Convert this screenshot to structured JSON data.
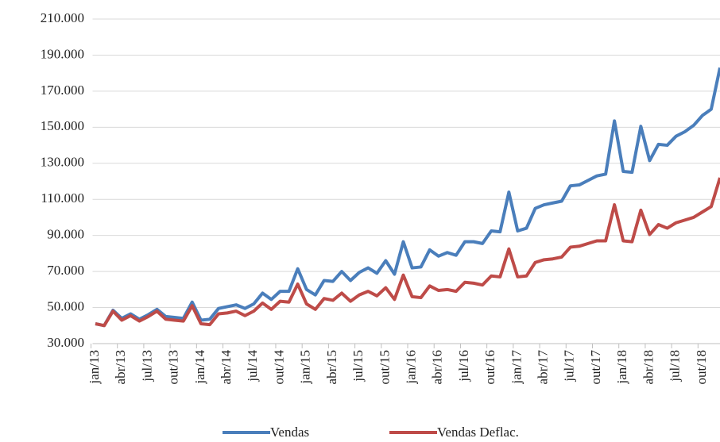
{
  "chart_data": {
    "type": "line",
    "categories": [
      "jan/13",
      null,
      null,
      "abr/13",
      null,
      null,
      "jul/13",
      null,
      null,
      "out/13",
      null,
      null,
      "jan/14",
      null,
      null,
      "abr/14",
      null,
      null,
      "jul/14",
      null,
      null,
      "out/14",
      null,
      null,
      "jan/15",
      null,
      null,
      "abr/15",
      null,
      null,
      "jul/15",
      null,
      null,
      "out/15",
      null,
      null,
      "jan/16",
      null,
      null,
      "abr/16",
      null,
      null,
      "jul/16",
      null,
      null,
      "out/16",
      null,
      null,
      "jan/17",
      null,
      null,
      "abr/17",
      null,
      null,
      "jul/17",
      null,
      null,
      "out/17",
      null,
      null,
      "jan/18",
      null,
      null,
      "abr/18",
      null,
      null,
      "jul/18",
      null,
      null,
      "out/18",
      null,
      null
    ],
    "series": [
      {
        "name": "Vendas",
        "color": "#4a7ebb",
        "values": [
          41000,
          40000,
          48500,
          44000,
          46500,
          43500,
          46000,
          49000,
          45000,
          44500,
          44000,
          53000,
          43000,
          43500,
          49500,
          50500,
          51500,
          49500,
          52000,
          58000,
          54500,
          59000,
          59000,
          71500,
          60000,
          57000,
          65000,
          64500,
          70000,
          65000,
          69500,
          72000,
          69000,
          76000,
          68500,
          86500,
          72000,
          72500,
          82000,
          78500,
          80500,
          79000,
          86500,
          86500,
          85500,
          92500,
          92000,
          114000,
          92500,
          94000,
          105000,
          107000,
          108000,
          109000,
          117500,
          118000,
          120500,
          123000,
          124000,
          153500,
          125500,
          125000,
          150500,
          131500,
          140500,
          140000,
          145000,
          147500,
          151000,
          156500,
          160000,
          183000
        ]
      },
      {
        "name": "Vendas Deflac.",
        "color": "#be4b48",
        "values": [
          41000,
          40000,
          48000,
          43000,
          45500,
          42500,
          45000,
          48000,
          43500,
          43000,
          42500,
          51000,
          41000,
          40500,
          46500,
          47000,
          48000,
          45500,
          48000,
          52500,
          49000,
          53500,
          53000,
          63000,
          52000,
          49000,
          55000,
          54000,
          58000,
          53500,
          57000,
          59000,
          56500,
          61000,
          54500,
          68000,
          56000,
          55500,
          62000,
          59500,
          60000,
          59000,
          64000,
          63500,
          62500,
          67500,
          67000,
          82500,
          67000,
          67500,
          75000,
          76500,
          77000,
          78000,
          83500,
          84000,
          85500,
          87000,
          87000,
          107000,
          87000,
          86500,
          104000,
          90500,
          96000,
          94000,
          97000,
          98500,
          100000,
          103000,
          106000,
          122000
        ]
      }
    ],
    "ylim": [
      30000,
      210000
    ],
    "yticks": [
      {
        "value": 30000,
        "label": "30.000"
      },
      {
        "value": 50000,
        "label": "50.000"
      },
      {
        "value": 70000,
        "label": "70.000"
      },
      {
        "value": 90000,
        "label": "90.000"
      },
      {
        "value": 110000,
        "label": "110.000"
      },
      {
        "value": 130000,
        "label": "130.000"
      },
      {
        "value": 150000,
        "label": "150.000"
      },
      {
        "value": 170000,
        "label": "170.000"
      },
      {
        "value": 190000,
        "label": "190.000"
      },
      {
        "value": 210000,
        "label": "210.000"
      }
    ],
    "grid": true,
    "legend": "bottom"
  }
}
